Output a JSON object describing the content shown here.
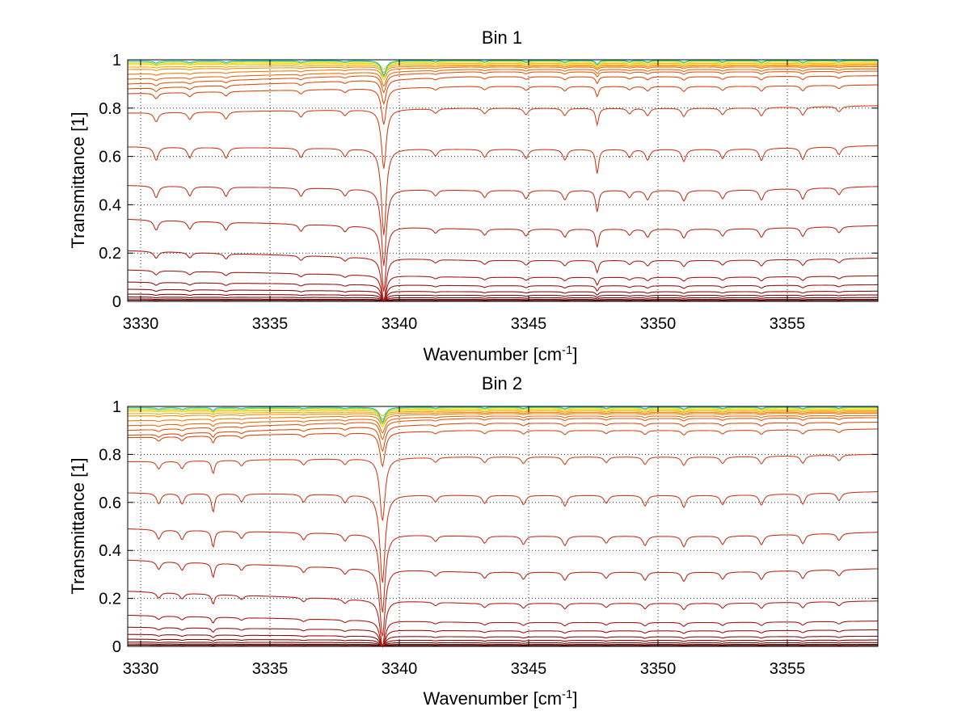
{
  "chart_data": [
    {
      "type": "line",
      "title": "Bin 1",
      "xlabel": "Wavenumber [cm",
      "xlabel_sup": "-1",
      "xlabel_end": "]",
      "ylabel": "Transmittance [1]",
      "xlim": [
        3329.5,
        3358.5
      ],
      "ylim": [
        0,
        1
      ],
      "xticks": [
        3330,
        3335,
        3340,
        3345,
        3350,
        3355
      ],
      "xtick_labels": [
        "3330",
        "3335",
        "3340",
        "3345",
        "3350",
        "3355"
      ],
      "yticks": [
        0,
        0.2,
        0.4,
        0.6,
        0.8,
        1
      ],
      "ytick_labels": [
        "0",
        "0.2",
        "0.4",
        "0.6",
        "0.8",
        "1"
      ],
      "grid": true,
      "baselines": [
        0.998,
        0.995,
        0.99,
        0.985,
        0.98,
        0.975,
        0.97,
        0.96,
        0.95,
        0.93,
        0.89,
        0.8,
        0.63,
        0.46,
        0.3,
        0.17,
        0.1,
        0.065,
        0.04,
        0.025,
        0.015,
        0.008,
        0.004
      ],
      "left_baselines": [
        0.995,
        0.99,
        0.985,
        0.98,
        0.97,
        0.96,
        0.94,
        0.92,
        0.9,
        0.88,
        0.86,
        0.78,
        0.64,
        0.48,
        0.34,
        0.21,
        0.13,
        0.08,
        0.05,
        0.03,
        0.018,
        0.01,
        0.005
      ],
      "colors": [
        "#22c6d8",
        "#9bd62c",
        "#f4e11c",
        "#f7c516",
        "#f6a813",
        "#f39012",
        "#ef7b12",
        "#eb6a13",
        "#e35a13",
        "#dc5012",
        "#d84a12",
        "#d5441b",
        "#d03b19",
        "#c8321a",
        "#be2a18",
        "#b32016",
        "#a61a14",
        "#991512",
        "#8c1010",
        "#800c0c",
        "#740909",
        "#6a0606",
        "#600404"
      ],
      "lines": [
        {
          "x": 3339.4,
          "depth": 0.32,
          "width": 0.11
        },
        {
          "x": 3347.65,
          "depth": 0.09,
          "width": 0.07
        },
        {
          "x": 3330.6,
          "depth": 0.05,
          "width": 0.1
        },
        {
          "x": 3331.9,
          "depth": 0.04,
          "width": 0.1
        },
        {
          "x": 3333.3,
          "depth": 0.04,
          "width": 0.1
        },
        {
          "x": 3336.2,
          "depth": 0.035,
          "width": 0.1
        },
        {
          "x": 3337.9,
          "depth": 0.03,
          "width": 0.1
        },
        {
          "x": 3341.4,
          "depth": 0.025,
          "width": 0.1
        },
        {
          "x": 3343.3,
          "depth": 0.03,
          "width": 0.1
        },
        {
          "x": 3344.9,
          "depth": 0.035,
          "width": 0.1
        },
        {
          "x": 3346.4,
          "depth": 0.04,
          "width": 0.1
        },
        {
          "x": 3348.9,
          "depth": 0.03,
          "width": 0.1
        },
        {
          "x": 3349.6,
          "depth": 0.04,
          "width": 0.1
        },
        {
          "x": 3351.0,
          "depth": 0.045,
          "width": 0.1
        },
        {
          "x": 3352.5,
          "depth": 0.035,
          "width": 0.1
        },
        {
          "x": 3354.0,
          "depth": 0.045,
          "width": 0.1
        },
        {
          "x": 3355.6,
          "depth": 0.045,
          "width": 0.1
        },
        {
          "x": 3357.0,
          "depth": 0.03,
          "width": 0.1
        }
      ]
    },
    {
      "type": "line",
      "title": "Bin 2",
      "xlabel": "Wavenumber [cm",
      "xlabel_sup": "-1",
      "xlabel_end": "]",
      "ylabel": "Transmittance [1]",
      "xlim": [
        3329.5,
        3358.5
      ],
      "ylim": [
        0,
        1
      ],
      "xticks": [
        3330,
        3335,
        3340,
        3345,
        3350,
        3355
      ],
      "xtick_labels": [
        "3330",
        "3335",
        "3340",
        "3345",
        "3350",
        "3355"
      ],
      "yticks": [
        0,
        0.2,
        0.4,
        0.6,
        0.8,
        1
      ],
      "ytick_labels": [
        "0",
        "0.2",
        "0.4",
        "0.6",
        "0.8",
        "1"
      ],
      "grid": true,
      "baselines": [
        0.998,
        0.995,
        0.99,
        0.985,
        0.98,
        0.975,
        0.97,
        0.96,
        0.95,
        0.93,
        0.9,
        0.79,
        0.63,
        0.46,
        0.31,
        0.18,
        0.1,
        0.065,
        0.04,
        0.025,
        0.015,
        0.008,
        0.004
      ],
      "left_baselines": [
        0.995,
        0.99,
        0.985,
        0.98,
        0.97,
        0.96,
        0.94,
        0.92,
        0.9,
        0.88,
        0.87,
        0.77,
        0.64,
        0.49,
        0.36,
        0.23,
        0.13,
        0.08,
        0.05,
        0.03,
        0.018,
        0.01,
        0.005
      ],
      "colors": [
        "#22c6d8",
        "#9bd62c",
        "#f4e11c",
        "#f7c516",
        "#f6a813",
        "#f39012",
        "#ef7b12",
        "#eb6a13",
        "#e35a13",
        "#dc5012",
        "#d84a12",
        "#d5441b",
        "#d03b19",
        "#c8321a",
        "#be2a18",
        "#b32016",
        "#a61a14",
        "#991512",
        "#8c1010",
        "#800c0c",
        "#740909",
        "#6a0606",
        "#600404"
      ],
      "lines": [
        {
          "x": 3339.35,
          "depth": 0.33,
          "width": 0.12
        },
        {
          "x": 3332.8,
          "depth": 0.07,
          "width": 0.07
        },
        {
          "x": 3330.7,
          "depth": 0.04,
          "width": 0.1
        },
        {
          "x": 3331.6,
          "depth": 0.04,
          "width": 0.1
        },
        {
          "x": 3333.9,
          "depth": 0.03,
          "width": 0.1
        },
        {
          "x": 3336.3,
          "depth": 0.03,
          "width": 0.1
        },
        {
          "x": 3337.9,
          "depth": 0.03,
          "width": 0.1
        },
        {
          "x": 3341.4,
          "depth": 0.025,
          "width": 0.1
        },
        {
          "x": 3343.3,
          "depth": 0.03,
          "width": 0.1
        },
        {
          "x": 3344.8,
          "depth": 0.035,
          "width": 0.1
        },
        {
          "x": 3346.4,
          "depth": 0.04,
          "width": 0.1
        },
        {
          "x": 3348.0,
          "depth": 0.03,
          "width": 0.1
        },
        {
          "x": 3349.5,
          "depth": 0.04,
          "width": 0.1
        },
        {
          "x": 3351.0,
          "depth": 0.045,
          "width": 0.1
        },
        {
          "x": 3352.5,
          "depth": 0.035,
          "width": 0.1
        },
        {
          "x": 3354.0,
          "depth": 0.04,
          "width": 0.1
        },
        {
          "x": 3355.6,
          "depth": 0.04,
          "width": 0.1
        },
        {
          "x": 3357.0,
          "depth": 0.03,
          "width": 0.1
        }
      ]
    }
  ]
}
